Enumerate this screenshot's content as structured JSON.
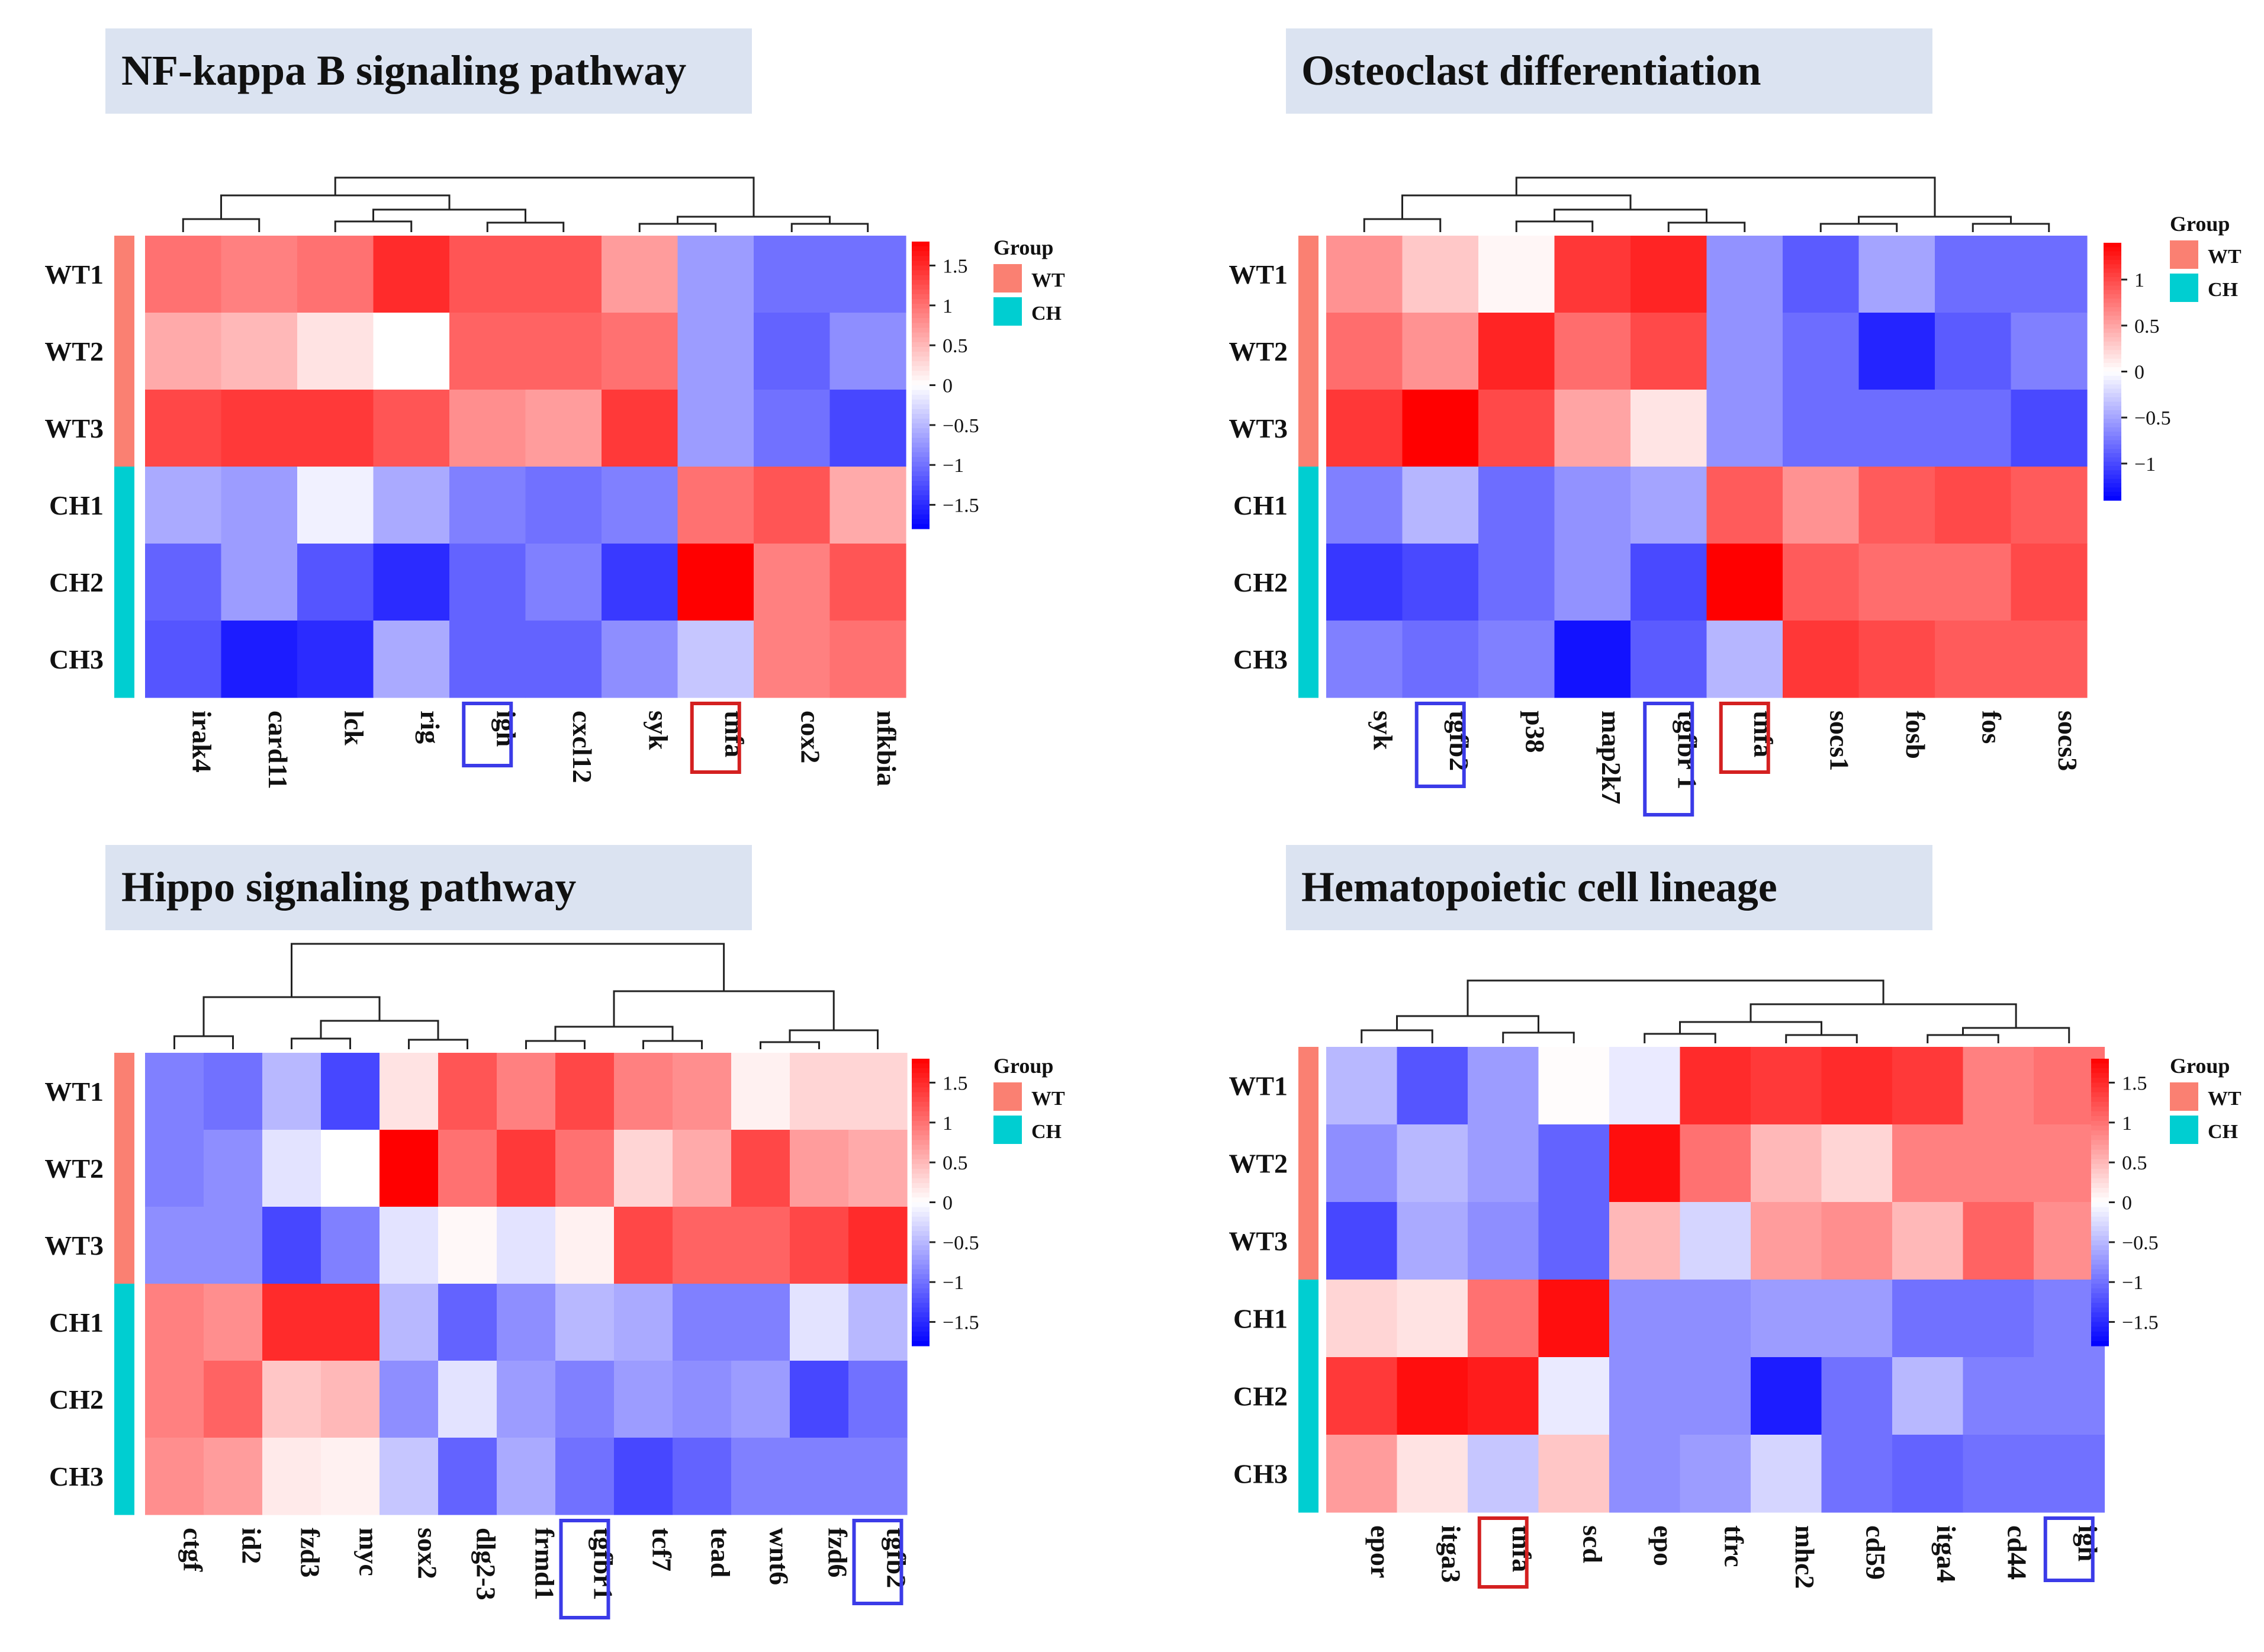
{
  "legend": {
    "title": "Group",
    "items": [
      {
        "label": "WT",
        "color": "#FA8072"
      },
      {
        "label": "CH",
        "color": "#00CED1"
      }
    ]
  },
  "row_groups": [
    "WT",
    "WT",
    "WT",
    "CH",
    "CH",
    "CH"
  ],
  "chart_data": [
    {
      "type": "heatmap",
      "title": "NF-kappa B signaling pathway",
      "rows": [
        "WT1",
        "WT2",
        "WT3",
        "CH1",
        "CH2",
        "CH3"
      ],
      "columns": [
        "irak4",
        "card11",
        "lck",
        "rig",
        "igh",
        "cxcl12",
        "syk",
        "tnfa",
        "cox2",
        "nfkbia"
      ],
      "highlight": {
        "blue": [
          "igh"
        ],
        "red": [
          "tnfa"
        ]
      },
      "color_range": [
        -1.8,
        1.8
      ],
      "colorbar_ticks": [
        "1.5",
        "1",
        "0.5",
        "0",
        "−0.5",
        "−1",
        "−1.5"
      ],
      "colorbar_tick_values": [
        1.5,
        1,
        0.5,
        0,
        -0.5,
        -1,
        -1.5
      ],
      "values": [
        [
          1.0,
          0.9,
          1.0,
          1.5,
          1.2,
          1.2,
          0.7,
          -0.7,
          -1.0,
          -1.0
        ],
        [
          0.6,
          0.5,
          0.2,
          0.0,
          1.1,
          1.1,
          1.0,
          -0.7,
          -1.1,
          -0.8
        ],
        [
          1.3,
          1.4,
          1.4,
          1.2,
          0.8,
          0.7,
          1.4,
          -0.7,
          -1.0,
          -1.3
        ],
        [
          -0.6,
          -0.7,
          -0.1,
          -0.6,
          -0.9,
          -1.0,
          -0.9,
          1.0,
          1.2,
          0.6
        ],
        [
          -1.1,
          -0.7,
          -1.2,
          -1.5,
          -1.1,
          -0.9,
          -1.4,
          1.8,
          0.9,
          1.2
        ],
        [
          -1.2,
          -1.6,
          -1.5,
          -0.6,
          -1.1,
          -1.1,
          -0.8,
          -0.4,
          0.9,
          1.0
        ]
      ]
    },
    {
      "type": "heatmap",
      "title": "Osteoclast differentiation",
      "rows": [
        "WT1",
        "WT2",
        "WT3",
        "CH1",
        "CH2",
        "CH3"
      ],
      "columns": [
        "syk",
        "tgfb2",
        "p38",
        "map2k7",
        "tgfbr 1",
        "tnfa",
        "socs1",
        "fosb",
        "fos",
        "socs3"
      ],
      "highlight": {
        "blue": [
          "tgfb2",
          "tgfbr 1"
        ],
        "red": [
          "tnfa"
        ]
      },
      "color_range": [
        -1.4,
        1.4
      ],
      "colorbar_ticks": [
        "1",
        "0.5",
        "0",
        "−0.5",
        "−1"
      ],
      "colorbar_tick_values": [
        1,
        0.5,
        0,
        -0.5,
        -1
      ],
      "values": [
        [
          0.6,
          0.3,
          0.05,
          1.1,
          1.2,
          -0.6,
          -0.9,
          -0.5,
          -0.8,
          -0.8
        ],
        [
          0.8,
          0.6,
          1.2,
          0.8,
          1.0,
          -0.6,
          -0.8,
          -1.2,
          -0.9,
          -0.7
        ],
        [
          1.1,
          1.4,
          1.0,
          0.5,
          0.15,
          -0.6,
          -0.8,
          -0.8,
          -0.8,
          -1.0
        ],
        [
          -0.7,
          -0.4,
          -0.8,
          -0.6,
          -0.5,
          0.9,
          0.6,
          0.9,
          1.0,
          0.9
        ],
        [
          -1.1,
          -1.0,
          -0.8,
          -0.6,
          -1.0,
          1.4,
          0.9,
          0.8,
          0.8,
          1.0
        ],
        [
          -0.7,
          -0.8,
          -0.7,
          -1.3,
          -0.9,
          -0.4,
          1.1,
          1.0,
          0.9,
          0.9
        ]
      ]
    },
    {
      "type": "heatmap",
      "title": "Hippo signaling pathway",
      "rows": [
        "WT1",
        "WT2",
        "WT3",
        "CH1",
        "CH2",
        "CH3"
      ],
      "columns": [
        "ctgf",
        "id2",
        "fzd3",
        "myc",
        "sox2",
        "dlg2-3",
        "frmd1",
        "tgfbr1",
        "tcf7",
        "tead",
        "wnt6",
        "fzd6",
        "tgfb2"
      ],
      "highlight": {
        "blue": [
          "tgfbr1",
          "tgfb2"
        ],
        "red": []
      },
      "color_range": [
        -1.8,
        1.8
      ],
      "colorbar_ticks": [
        "1.5",
        "1",
        "0.5",
        "0",
        "−0.5",
        "−1",
        "−1.5"
      ],
      "colorbar_tick_values": [
        1.5,
        1,
        0.5,
        0,
        -0.5,
        -1,
        -1.5
      ],
      "values": [
        [
          -0.9,
          -1.0,
          -0.5,
          -1.3,
          0.2,
          1.2,
          0.9,
          1.3,
          0.9,
          0.8,
          0.1,
          0.3,
          0.3
        ],
        [
          -0.9,
          -0.8,
          -0.2,
          0.0,
          1.8,
          1.0,
          1.4,
          1.0,
          0.3,
          0.6,
          1.3,
          0.7,
          0.6
        ],
        [
          -0.8,
          -0.8,
          -1.3,
          -0.9,
          -0.2,
          0.05,
          -0.2,
          0.1,
          1.3,
          1.1,
          1.1,
          1.3,
          1.5
        ],
        [
          0.9,
          0.8,
          1.5,
          1.5,
          -0.5,
          -1.1,
          -0.8,
          -0.5,
          -0.6,
          -0.9,
          -0.9,
          -0.2,
          -0.5
        ],
        [
          0.9,
          1.1,
          0.4,
          0.5,
          -0.8,
          -0.2,
          -0.7,
          -0.9,
          -0.7,
          -0.8,
          -0.7,
          -1.3,
          -1.0
        ],
        [
          0.8,
          0.7,
          0.15,
          0.1,
          -0.4,
          -1.1,
          -0.6,
          -1.0,
          -1.3,
          -1.1,
          -0.9,
          -0.9,
          -0.9
        ]
      ]
    },
    {
      "type": "heatmap",
      "title": "Hematopoietic cell lineage",
      "rows": [
        "WT1",
        "WT2",
        "WT3",
        "CH1",
        "CH2",
        "CH3"
      ],
      "columns": [
        "epor",
        "itga3",
        "tnfa",
        "scd",
        "epo",
        "tfrc",
        "mhc2",
        "cd59",
        "itga4",
        "cd44",
        "igh"
      ],
      "highlight": {
        "blue": [
          "igh"
        ],
        "red": [
          "tnfa"
        ]
      },
      "color_range": [
        -1.8,
        1.8
      ],
      "colorbar_ticks": [
        "1.5",
        "1",
        "0.5",
        "0",
        "−0.5",
        "−1",
        "−1.5"
      ],
      "colorbar_tick_values": [
        1.5,
        1,
        0.5,
        0,
        -0.5,
        -1,
        -1.5
      ],
      "values": [
        [
          -0.5,
          -1.2,
          -0.7,
          0.02,
          -0.15,
          1.5,
          1.4,
          1.5,
          1.4,
          0.9,
          1.0
        ],
        [
          -0.8,
          -0.5,
          -0.7,
          -1.1,
          1.7,
          1.0,
          0.5,
          0.3,
          0.9,
          0.9,
          0.9
        ],
        [
          -1.3,
          -0.6,
          -0.8,
          -1.1,
          0.5,
          -0.3,
          0.7,
          0.8,
          0.5,
          1.1,
          0.8
        ],
        [
          0.3,
          0.2,
          1.0,
          1.7,
          -0.8,
          -0.8,
          -0.7,
          -0.7,
          -1.0,
          -1.0,
          -0.9
        ],
        [
          1.4,
          1.7,
          1.6,
          -0.15,
          -0.8,
          -0.8,
          -1.6,
          -1.0,
          -0.5,
          -0.9,
          -0.9
        ],
        [
          0.7,
          0.2,
          -0.4,
          0.4,
          -0.8,
          -0.7,
          -0.3,
          -1.0,
          -1.1,
          -1.0,
          -1.0
        ]
      ]
    }
  ]
}
